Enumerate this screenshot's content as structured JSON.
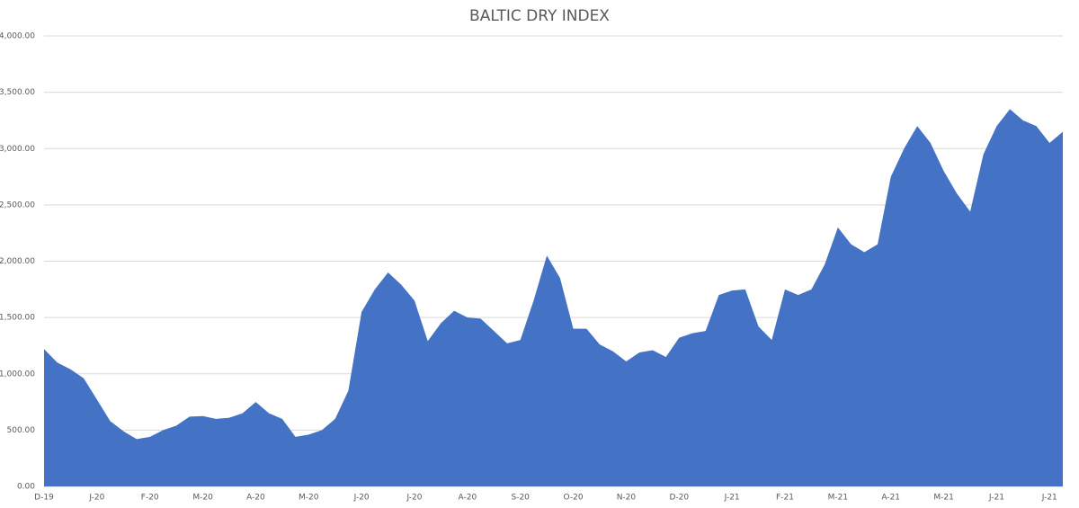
{
  "chart_data": {
    "type": "area",
    "title": "BALTIC DRY INDEX",
    "categories": [
      "D-19",
      null,
      null,
      null,
      "J-20",
      null,
      null,
      null,
      "F-20",
      null,
      null,
      null,
      "M-20",
      null,
      null,
      null,
      "A-20",
      null,
      null,
      null,
      "M-20",
      null,
      null,
      null,
      "J-20",
      null,
      null,
      null,
      "J-20",
      null,
      null,
      null,
      "A-20",
      null,
      null,
      null,
      "S-20",
      null,
      null,
      null,
      "O-20",
      null,
      null,
      null,
      "N-20",
      null,
      null,
      null,
      "D-20",
      null,
      null,
      null,
      "J-21",
      null,
      null,
      null,
      "F-21",
      null,
      null,
      null,
      "M-21",
      null,
      null,
      null,
      "A-21",
      null,
      null,
      null,
      "M-21",
      null,
      null,
      null,
      "J-21",
      null,
      null,
      null,
      "J-21",
      null
    ],
    "values": [
      1220,
      1100,
      1040,
      960,
      770,
      580,
      490,
      420,
      440,
      500,
      540,
      620,
      625,
      600,
      610,
      650,
      750,
      650,
      600,
      440,
      460,
      500,
      600,
      850,
      1550,
      1750,
      1900,
      1790,
      1650,
      1290,
      1450,
      1560,
      1500,
      1490,
      1380,
      1270,
      1300,
      1650,
      2050,
      1850,
      1400,
      1400,
      1260,
      1200,
      1110,
      1190,
      1210,
      1150,
      1320,
      1360,
      1380,
      1700,
      1740,
      1750,
      1420,
      1300,
      1750,
      1700,
      1750,
      1970,
      2300,
      2150,
      2080,
      2150,
      2750,
      3000,
      3200,
      3050,
      2800,
      2600,
      2440,
      2950,
      3200,
      3350,
      3250,
      3200,
      3050,
      3150
    ],
    "color": "#4472c4",
    "ylim": [
      0,
      4000
    ],
    "yticks": [
      {
        "value": 0,
        "label": "0.00"
      },
      {
        "value": 500,
        "label": "500.00"
      },
      {
        "value": 1000,
        "label": "1,000.00"
      },
      {
        "value": 1500,
        "label": "1,500.00"
      },
      {
        "value": 2000,
        "label": "2,000.00"
      },
      {
        "value": 2500,
        "label": "2,500.00"
      },
      {
        "value": 3000,
        "label": "3,000.00"
      },
      {
        "value": 3500,
        "label": "3,500.00"
      },
      {
        "value": 4000,
        "label": "4,000.00"
      }
    ],
    "grid": true
  }
}
